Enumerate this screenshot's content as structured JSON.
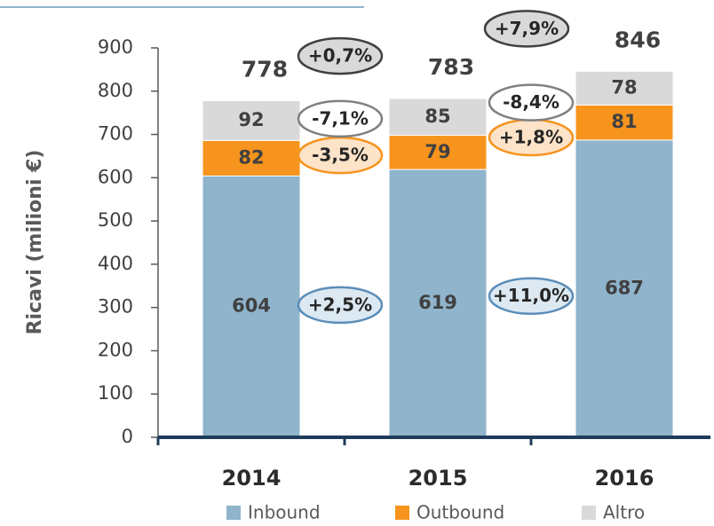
{
  "chart_data": {
    "type": "stacked_bar",
    "y_label": "Ricavi (milioni €)",
    "categories": [
      "2014",
      "2015",
      "2016"
    ],
    "series": [
      {
        "name": "Inbound",
        "color": "#8fb4cc",
        "values": [
          604,
          619,
          687
        ],
        "changes": [
          "+2,5%",
          "+11,0%"
        ],
        "change_fill": "#dce9f2",
        "change_stroke": "#5b8db8"
      },
      {
        "name": "Outbound",
        "color": "#f7941d",
        "values": [
          82,
          79,
          81
        ],
        "changes": [
          "-3,5%",
          "+1,8%"
        ],
        "change_fill": "#fde3c8",
        "change_stroke": "#f7941d"
      },
      {
        "name": "Altro",
        "color": "#d9d9d9",
        "values": [
          92,
          85,
          78
        ],
        "changes": [
          "-7,1%",
          "-8,4%"
        ],
        "change_fill": "#ffffff",
        "change_stroke": "#808080"
      }
    ],
    "totals": [
      778,
      783,
      846
    ],
    "total_changes": [
      "+0,7%",
      "+7,9%"
    ],
    "total_change_fill": "#d9d9d9",
    "total_change_stroke": "#404040",
    "ylim": [
      0,
      900
    ],
    "yticks": [
      0,
      100,
      200,
      300,
      400,
      500,
      600,
      700,
      800,
      900
    ],
    "legend": "bottom"
  }
}
